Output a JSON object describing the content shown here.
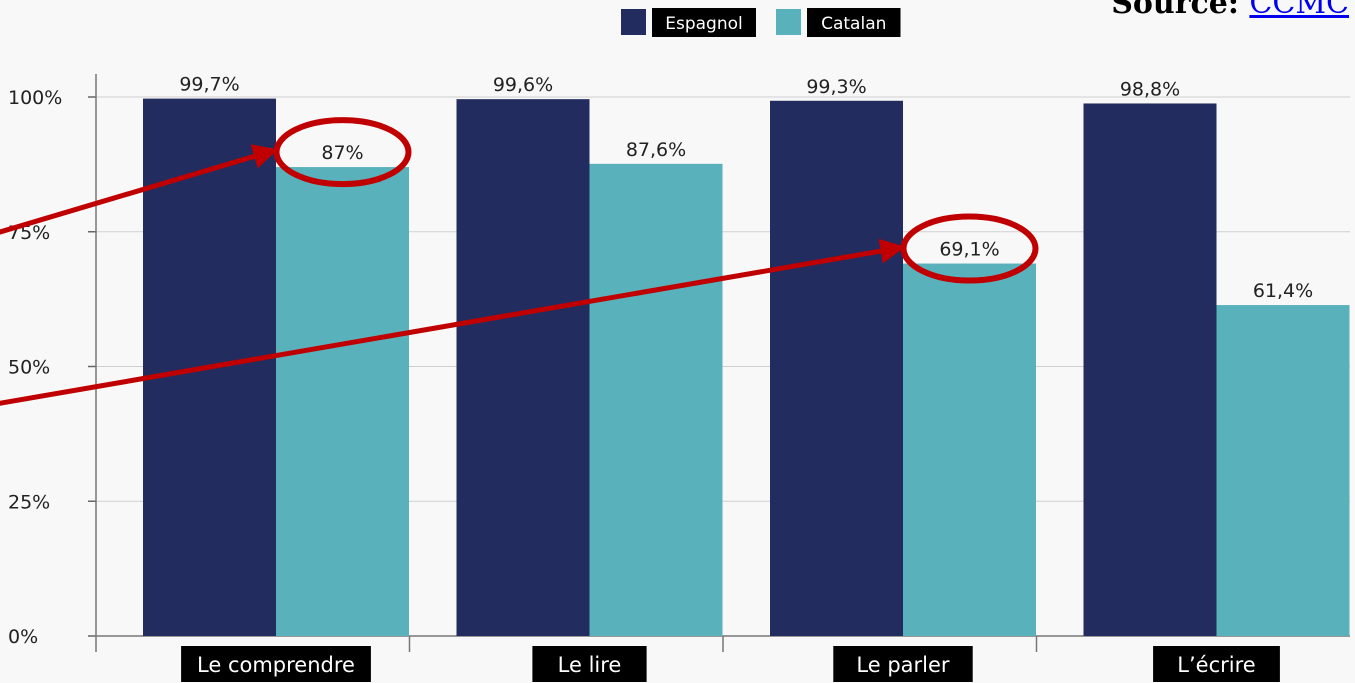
{
  "source": {
    "label": "Source:",
    "link_text": "CCMC"
  },
  "chart_data": {
    "type": "bar",
    "categories": [
      "Le comprendre",
      "Le lire",
      "Le parler",
      "L’écrire"
    ],
    "series": [
      {
        "name": "Espagnol",
        "values": [
          99.7,
          99.6,
          99.3,
          98.8
        ],
        "labels": [
          "99,7%",
          "99,6%",
          "99,3%",
          "98,8%"
        ],
        "color": "#222c5e"
      },
      {
        "name": "Catalan",
        "values": [
          87,
          87.6,
          69.1,
          61.4
        ],
        "labels": [
          "87%",
          "87,6%",
          "69,1%",
          "61,4%"
        ],
        "color": "#59b1bb"
      }
    ],
    "yticks": [
      0,
      25,
      50,
      75,
      100
    ],
    "ytick_labels": [
      "0%",
      "25%",
      "50%",
      "75%",
      "100%"
    ],
    "ylim": [
      0,
      100
    ],
    "legend_position": "top",
    "grid": true,
    "annotations": {
      "circled": [
        {
          "series": "Catalan",
          "category": "Le comprendre"
        },
        {
          "series": "Catalan",
          "category": "Le parler"
        }
      ],
      "arrow_color": "#c00000"
    }
  }
}
